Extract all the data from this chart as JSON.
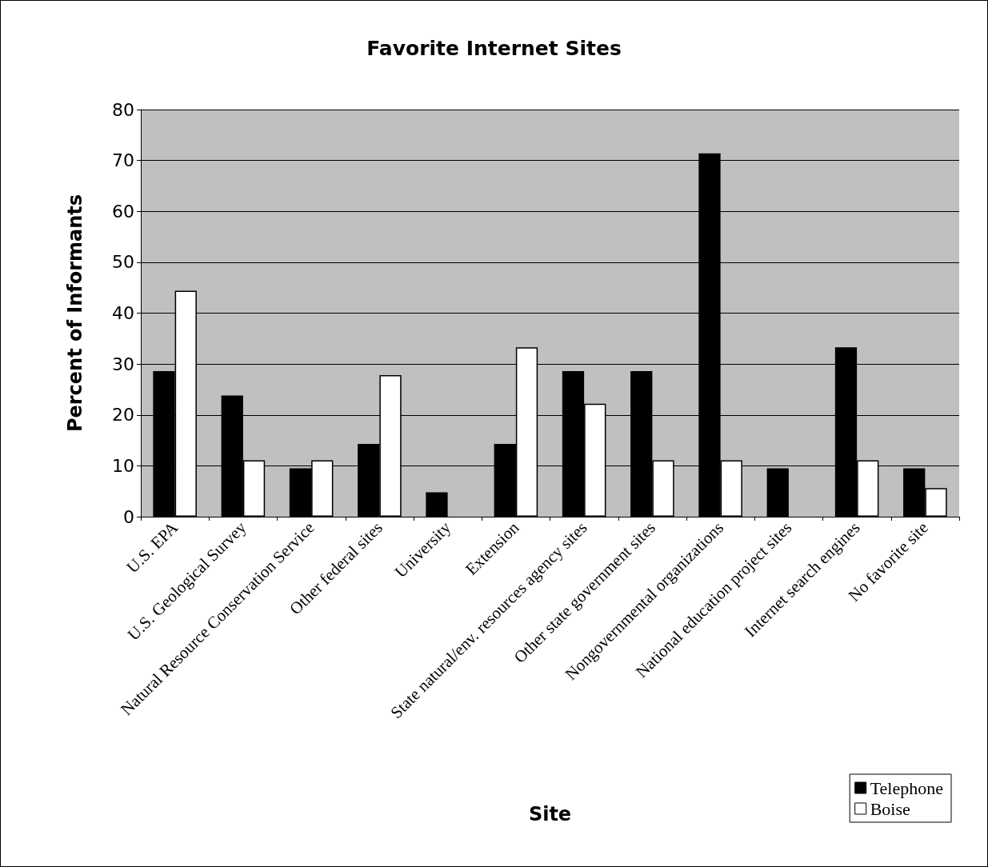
{
  "chart_data": {
    "type": "bar",
    "title": "Favorite Internet Sites",
    "xlabel": "Site",
    "ylabel": "Percent of Informants",
    "categories": [
      "U.S. EPA",
      "U.S. Geological Survey",
      "Natural Resource Conservation Service",
      "Other federal sites",
      "University",
      "Extension",
      "State natural/env. resources agency sites",
      "Other state government sites",
      "Nongovernmental organizations",
      "National education project sites",
      "Internet search engines",
      "No favorite site"
    ],
    "series": [
      {
        "name": "Telephone",
        "color": "#000000",
        "values": [
          28.6,
          23.8,
          9.5,
          14.3,
          4.8,
          14.3,
          28.6,
          28.6,
          71.4,
          9.5,
          33.3,
          9.5
        ]
      },
      {
        "name": "Boise",
        "color": "#ffffff",
        "values": [
          44.4,
          11.1,
          11.1,
          27.8,
          0,
          33.3,
          22.2,
          11.1,
          11.1,
          0,
          11.1,
          5.6
        ]
      }
    ],
    "ylim": [
      0,
      80
    ],
    "yticks": [
      0,
      10,
      20,
      30,
      40,
      50,
      60,
      70,
      80
    ],
    "grid": "y",
    "legend": "bottom right"
  }
}
